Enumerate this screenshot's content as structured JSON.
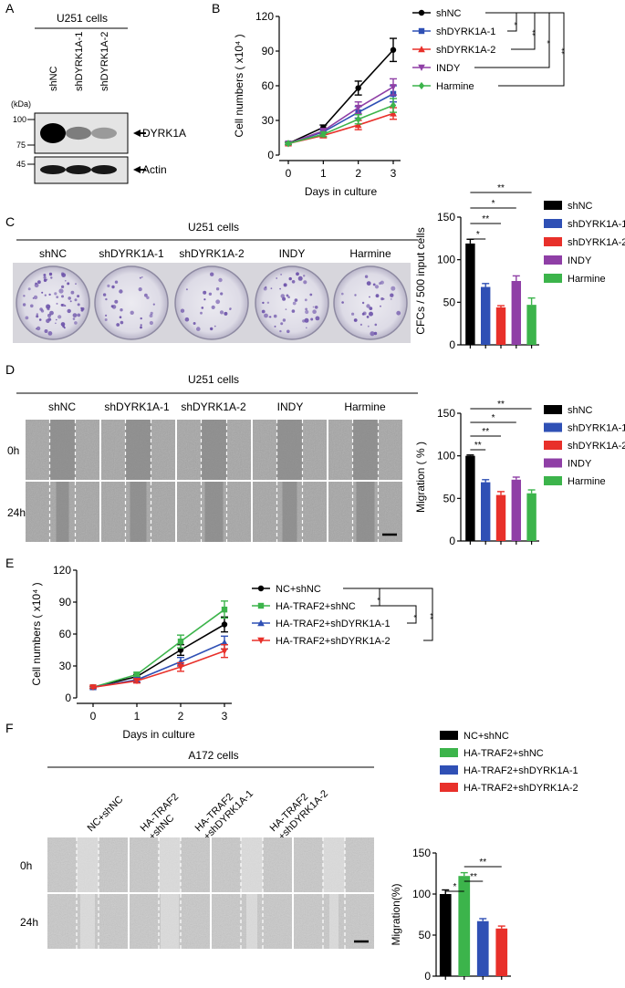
{
  "panels": {
    "A": {
      "letter": "A",
      "title": "U251 cells",
      "lanes": [
        "shNC",
        "shDYRK1A-1",
        "shDYRK1A-2"
      ],
      "kda_label": "(kDa)",
      "markers": [
        "100",
        "75",
        "45"
      ],
      "bands": [
        "DYRK1A",
        "Actin"
      ],
      "band_intensity": {
        "DYRK1A": [
          1.0,
          0.35,
          0.2
        ],
        "Actin": [
          1.0,
          1.0,
          1.0
        ]
      }
    },
    "B": {
      "letter": "B"
    },
    "C": {
      "letter": "C",
      "title": "U251 cells",
      "dish_labels": [
        "shNC",
        "shDYRK1A-1",
        "shDYRK1A-2",
        "INDY",
        "Harmine"
      ]
    },
    "D": {
      "letter": "D",
      "title": "U251 cells",
      "col_labels": [
        "shNC",
        "shDYRK1A-1",
        "shDYRK1A-2",
        "INDY",
        "Harmine"
      ],
      "row_labels": [
        "0h",
        "24h"
      ]
    },
    "E": {
      "letter": "E"
    },
    "F": {
      "letter": "F",
      "title": "A172 cells",
      "col_labels": [
        "NC+shNC",
        "HA-TRAF2\n+shNC",
        "HA-TRAF2\n+shDYRK1A-1",
        "HA-TRAF2\n+shDYRK1A-2"
      ],
      "row_labels": [
        "0h",
        "24h"
      ]
    }
  },
  "colors": {
    "black": "#000000",
    "blue": "#2f50b5",
    "red": "#e8302a",
    "purple": "#8f3fa6",
    "green": "#3cb44b",
    "stain": "#6a4fa8",
    "micro": "#9a9a9a",
    "micro_gap": "#7c7c7c"
  },
  "chart_data": [
    {
      "id": "B",
      "type": "line",
      "xlabel": "Days in culture",
      "ylabel": "Cell numbers ( x10⁴ )",
      "x": [
        0,
        1,
        2,
        3
      ],
      "xticks": [
        "0",
        "1",
        "2",
        "3"
      ],
      "ylim": [
        0,
        120
      ],
      "yticks": [
        "0",
        "30",
        "60",
        "90",
        "120"
      ],
      "series": [
        {
          "name": "shNC",
          "values": [
            10,
            24,
            58,
            91
          ],
          "err": [
            1,
            2,
            6,
            10
          ],
          "color": "#000000",
          "marker": "circle"
        },
        {
          "name": "shDYRK1A-1",
          "values": [
            10,
            20,
            37,
            53
          ],
          "err": [
            1,
            2,
            5,
            7
          ],
          "color": "#2f50b5",
          "marker": "square"
        },
        {
          "name": "shDYRK1A-2",
          "values": [
            10,
            17,
            26,
            36
          ],
          "err": [
            1,
            2,
            4,
            5
          ],
          "color": "#e8302a",
          "marker": "triangle-up"
        },
        {
          "name": "INDY",
          "values": [
            10,
            21,
            41,
            59
          ],
          "err": [
            1,
            2,
            5,
            7
          ],
          "color": "#8f3fa6",
          "marker": "triangle-down"
        },
        {
          "name": "Harmine",
          "values": [
            10,
            18,
            31,
            43
          ],
          "err": [
            1,
            2,
            4,
            6
          ],
          "color": "#3cb44b",
          "marker": "diamond"
        }
      ],
      "significance": [
        "*",
        "**",
        "*",
        "**"
      ]
    },
    {
      "id": "C",
      "type": "bar",
      "ylabel": "CFCs / 500 input cells",
      "categories": [
        "shNC",
        "shDYRK1A-1",
        "shDYRK1A-2",
        "INDY",
        "Harmine"
      ],
      "values": [
        119,
        68,
        44,
        75,
        47
      ],
      "err": [
        5,
        4,
        2,
        6,
        8
      ],
      "colors": [
        "#000000",
        "#2f50b5",
        "#e8302a",
        "#8f3fa6",
        "#3cb44b"
      ],
      "ylim": [
        0,
        150
      ],
      "yticks": [
        "0",
        "50",
        "100",
        "150"
      ],
      "significance": [
        "*",
        "**",
        "*",
        "**"
      ]
    },
    {
      "id": "D",
      "type": "bar",
      "ylabel": "Migration ( % )",
      "categories": [
        "shNC",
        "shDYRK1A-1",
        "shDYRK1A-2",
        "INDY",
        "Harmine"
      ],
      "values": [
        100,
        69,
        54,
        72,
        56
      ],
      "err": [
        1,
        3,
        4,
        3,
        4
      ],
      "colors": [
        "#000000",
        "#2f50b5",
        "#e8302a",
        "#8f3fa6",
        "#3cb44b"
      ],
      "ylim": [
        0,
        150
      ],
      "yticks": [
        "0",
        "50",
        "100",
        "150"
      ],
      "significance": [
        "**",
        "**",
        "*",
        "**"
      ]
    },
    {
      "id": "E",
      "type": "line",
      "xlabel": "Days in culture",
      "ylabel": "Cell numbers  ( x10⁴ )",
      "x": [
        0,
        1,
        2,
        3
      ],
      "xticks": [
        "0",
        "1",
        "2",
        "3"
      ],
      "ylim": [
        0,
        120
      ],
      "yticks": [
        "0",
        "30",
        "60",
        "90",
        "120"
      ],
      "series": [
        {
          "name": "NC+shNC",
          "values": [
            10,
            20,
            45,
            69
          ],
          "err": [
            1,
            2,
            5,
            7
          ],
          "color": "#000000",
          "marker": "circle"
        },
        {
          "name": "HA-TRAF2+shNC",
          "values": [
            10,
            22,
            53,
            83
          ],
          "err": [
            1,
            2,
            6,
            8
          ],
          "color": "#3cb44b",
          "marker": "square"
        },
        {
          "name": "HA-TRAF2+shDYRK1A-1",
          "values": [
            10,
            17,
            34,
            52
          ],
          "err": [
            1,
            2,
            4,
            6
          ],
          "color": "#2f50b5",
          "marker": "triangle-up"
        },
        {
          "name": "HA-TRAF2+shDYRK1A-2",
          "values": [
            10,
            16,
            29,
            44
          ],
          "err": [
            1,
            2,
            4,
            6
          ],
          "color": "#e8302a",
          "marker": "triangle-down"
        }
      ],
      "significance": [
        "*",
        "*",
        "**"
      ]
    },
    {
      "id": "F",
      "type": "bar",
      "ylabel": "Migration(%)",
      "categories": [
        "NC+shNC",
        "HA-TRAF2+shNC",
        "HA-TRAF2+shDYRK1A-1",
        "HA-TRAF2+shDYRK1A-2"
      ],
      "values": [
        100,
        122,
        67,
        58
      ],
      "err": [
        5,
        4,
        3,
        3
      ],
      "colors": [
        "#000000",
        "#3cb44b",
        "#2f50b5",
        "#e8302a"
      ],
      "ylim": [
        0,
        150
      ],
      "yticks": [
        "0",
        "50",
        "100",
        "150"
      ],
      "significance": [
        "*",
        "**",
        "**"
      ]
    }
  ]
}
